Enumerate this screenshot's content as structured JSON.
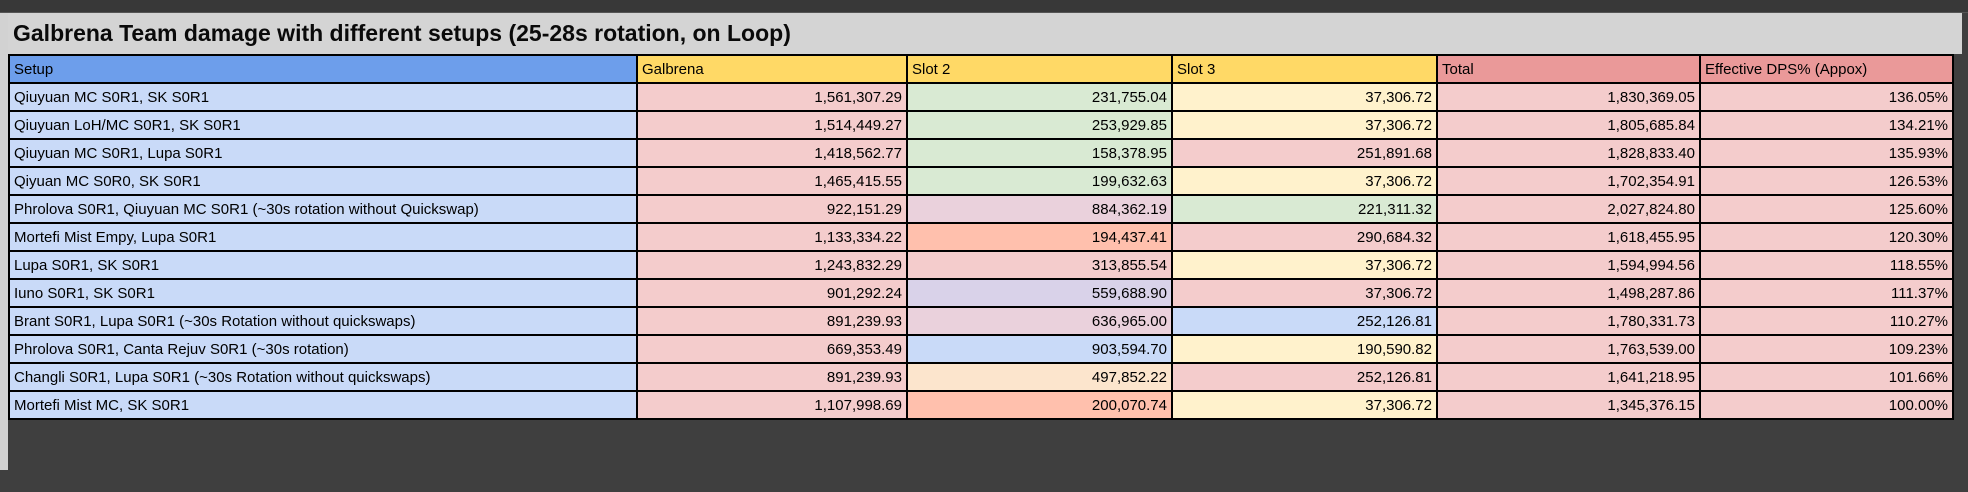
{
  "title": "Galbrena Team damage with different setups (25-28s rotation, on Loop)",
  "columns": [
    {
      "label": "Setup",
      "bg": "#6d9eeb"
    },
    {
      "label": "Galbrena",
      "bg": "#ffd966"
    },
    {
      "label": "Slot 2",
      "bg": "#ffd966"
    },
    {
      "label": "Slot 3",
      "bg": "#ffd966"
    },
    {
      "label": "Total",
      "bg": "#ea9999"
    },
    {
      "label": "Effective DPS% (Appox)",
      "bg": "#ea9999"
    }
  ],
  "colors": {
    "setup_cell_bg": "#c9daf8",
    "galbrena_cell_bg": "#f4cccc",
    "total_cell_bg": "#f4cccc",
    "dps_cell_bg": "#f4cccc",
    "border": "#000000",
    "title_band_bg": "#d4d4d4",
    "surround_bg": "#3f3f3f"
  },
  "rows": [
    {
      "setup": "Qiuyuan MC S0R1, SK S0R1",
      "galbrena": "1,561,307.29",
      "slot2": "231,755.04",
      "slot2_bg": "#d9ead3",
      "slot3": "37,306.72",
      "slot3_bg": "#fff2cc",
      "total": "1,830,369.05",
      "dps": "136.05%"
    },
    {
      "setup": "Qiuyuan LoH/MC S0R1, SK S0R1",
      "galbrena": "1,514,449.27",
      "slot2": "253,929.85",
      "slot2_bg": "#d9ead3",
      "slot3": "37,306.72",
      "slot3_bg": "#fff2cc",
      "total": "1,805,685.84",
      "dps": "134.21%"
    },
    {
      "setup": "Qiuyuan MC S0R1, Lupa S0R1",
      "galbrena": "1,418,562.77",
      "slot2": "158,378.95",
      "slot2_bg": "#d9ead3",
      "slot3": "251,891.68",
      "slot3_bg": "#f4cccc",
      "total": "1,828,833.40",
      "dps": "135.93%"
    },
    {
      "setup": "Qiyuan MC S0R0, SK S0R1",
      "galbrena": "1,465,415.55",
      "slot2": "199,632.63",
      "slot2_bg": "#d9ead3",
      "slot3": "37,306.72",
      "slot3_bg": "#fff2cc",
      "total": "1,702,354.91",
      "dps": "126.53%"
    },
    {
      "setup": "Phrolova S0R1, Qiuyuan MC S0R1 (~30s rotation without Quickswap)",
      "galbrena": "922,151.29",
      "slot2": "884,362.19",
      "slot2_bg": "#ead1dc",
      "slot3": "221,311.32",
      "slot3_bg": "#d9ead3",
      "total": "2,027,824.80",
      "dps": "125.60%"
    },
    {
      "setup": "Mortefi Mist Empy, Lupa S0R1",
      "galbrena": "1,133,334.22",
      "slot2": "194,437.41",
      "slot2_bg": "#ffc0ad",
      "slot3": "290,684.32",
      "slot3_bg": "#f4cccc",
      "total": "1,618,455.95",
      "dps": "120.30%"
    },
    {
      "setup": "Lupa S0R1, SK S0R1",
      "galbrena": "1,243,832.29",
      "slot2": "313,855.54",
      "slot2_bg": "#f4cccc",
      "slot3": "37,306.72",
      "slot3_bg": "#fff2cc",
      "total": "1,594,994.56",
      "dps": "118.55%"
    },
    {
      "setup": "Iuno S0R1, SK  S0R1",
      "galbrena": "901,292.24",
      "slot2": "559,688.90",
      "slot2_bg": "#d9d2e9",
      "slot3": "37,306.72",
      "slot3_bg": "#f4cccc",
      "total": "1,498,287.86",
      "dps": "111.37%"
    },
    {
      "setup": "Brant S0R1, Lupa S0R1 (~30s Rotation without quickswaps)",
      "galbrena": "891,239.93",
      "slot2": "636,965.00",
      "slot2_bg": "#ead1dc",
      "slot3": "252,126.81",
      "slot3_bg": "#c9daf8",
      "total": "1,780,331.73",
      "dps": "110.27%"
    },
    {
      "setup": "Phrolova S0R1, Canta Rejuv S0R1 (~30s rotation)",
      "galbrena": "669,353.49",
      "slot2": "903,594.70",
      "slot2_bg": "#c9daf8",
      "slot3": "190,590.82",
      "slot3_bg": "#fff2cc",
      "total": "1,763,539.00",
      "dps": "109.23%"
    },
    {
      "setup": "Changli S0R1, Lupa S0R1 (~30s Rotation without quickswaps)",
      "galbrena": "891,239.93",
      "slot2": "497,852.22",
      "slot2_bg": "#fce5cd",
      "slot3": "252,126.81",
      "slot3_bg": "#f4cccc",
      "total": "1,641,218.95",
      "dps": "101.66%"
    },
    {
      "setup": "Mortefi Mist MC, SK S0R1",
      "galbrena": "1,107,998.69",
      "slot2": "200,070.74",
      "slot2_bg": "#ffc0ad",
      "slot3": "37,306.72",
      "slot3_bg": "#fff2cc",
      "total": "1,345,376.15",
      "dps": "100.00%"
    }
  ]
}
